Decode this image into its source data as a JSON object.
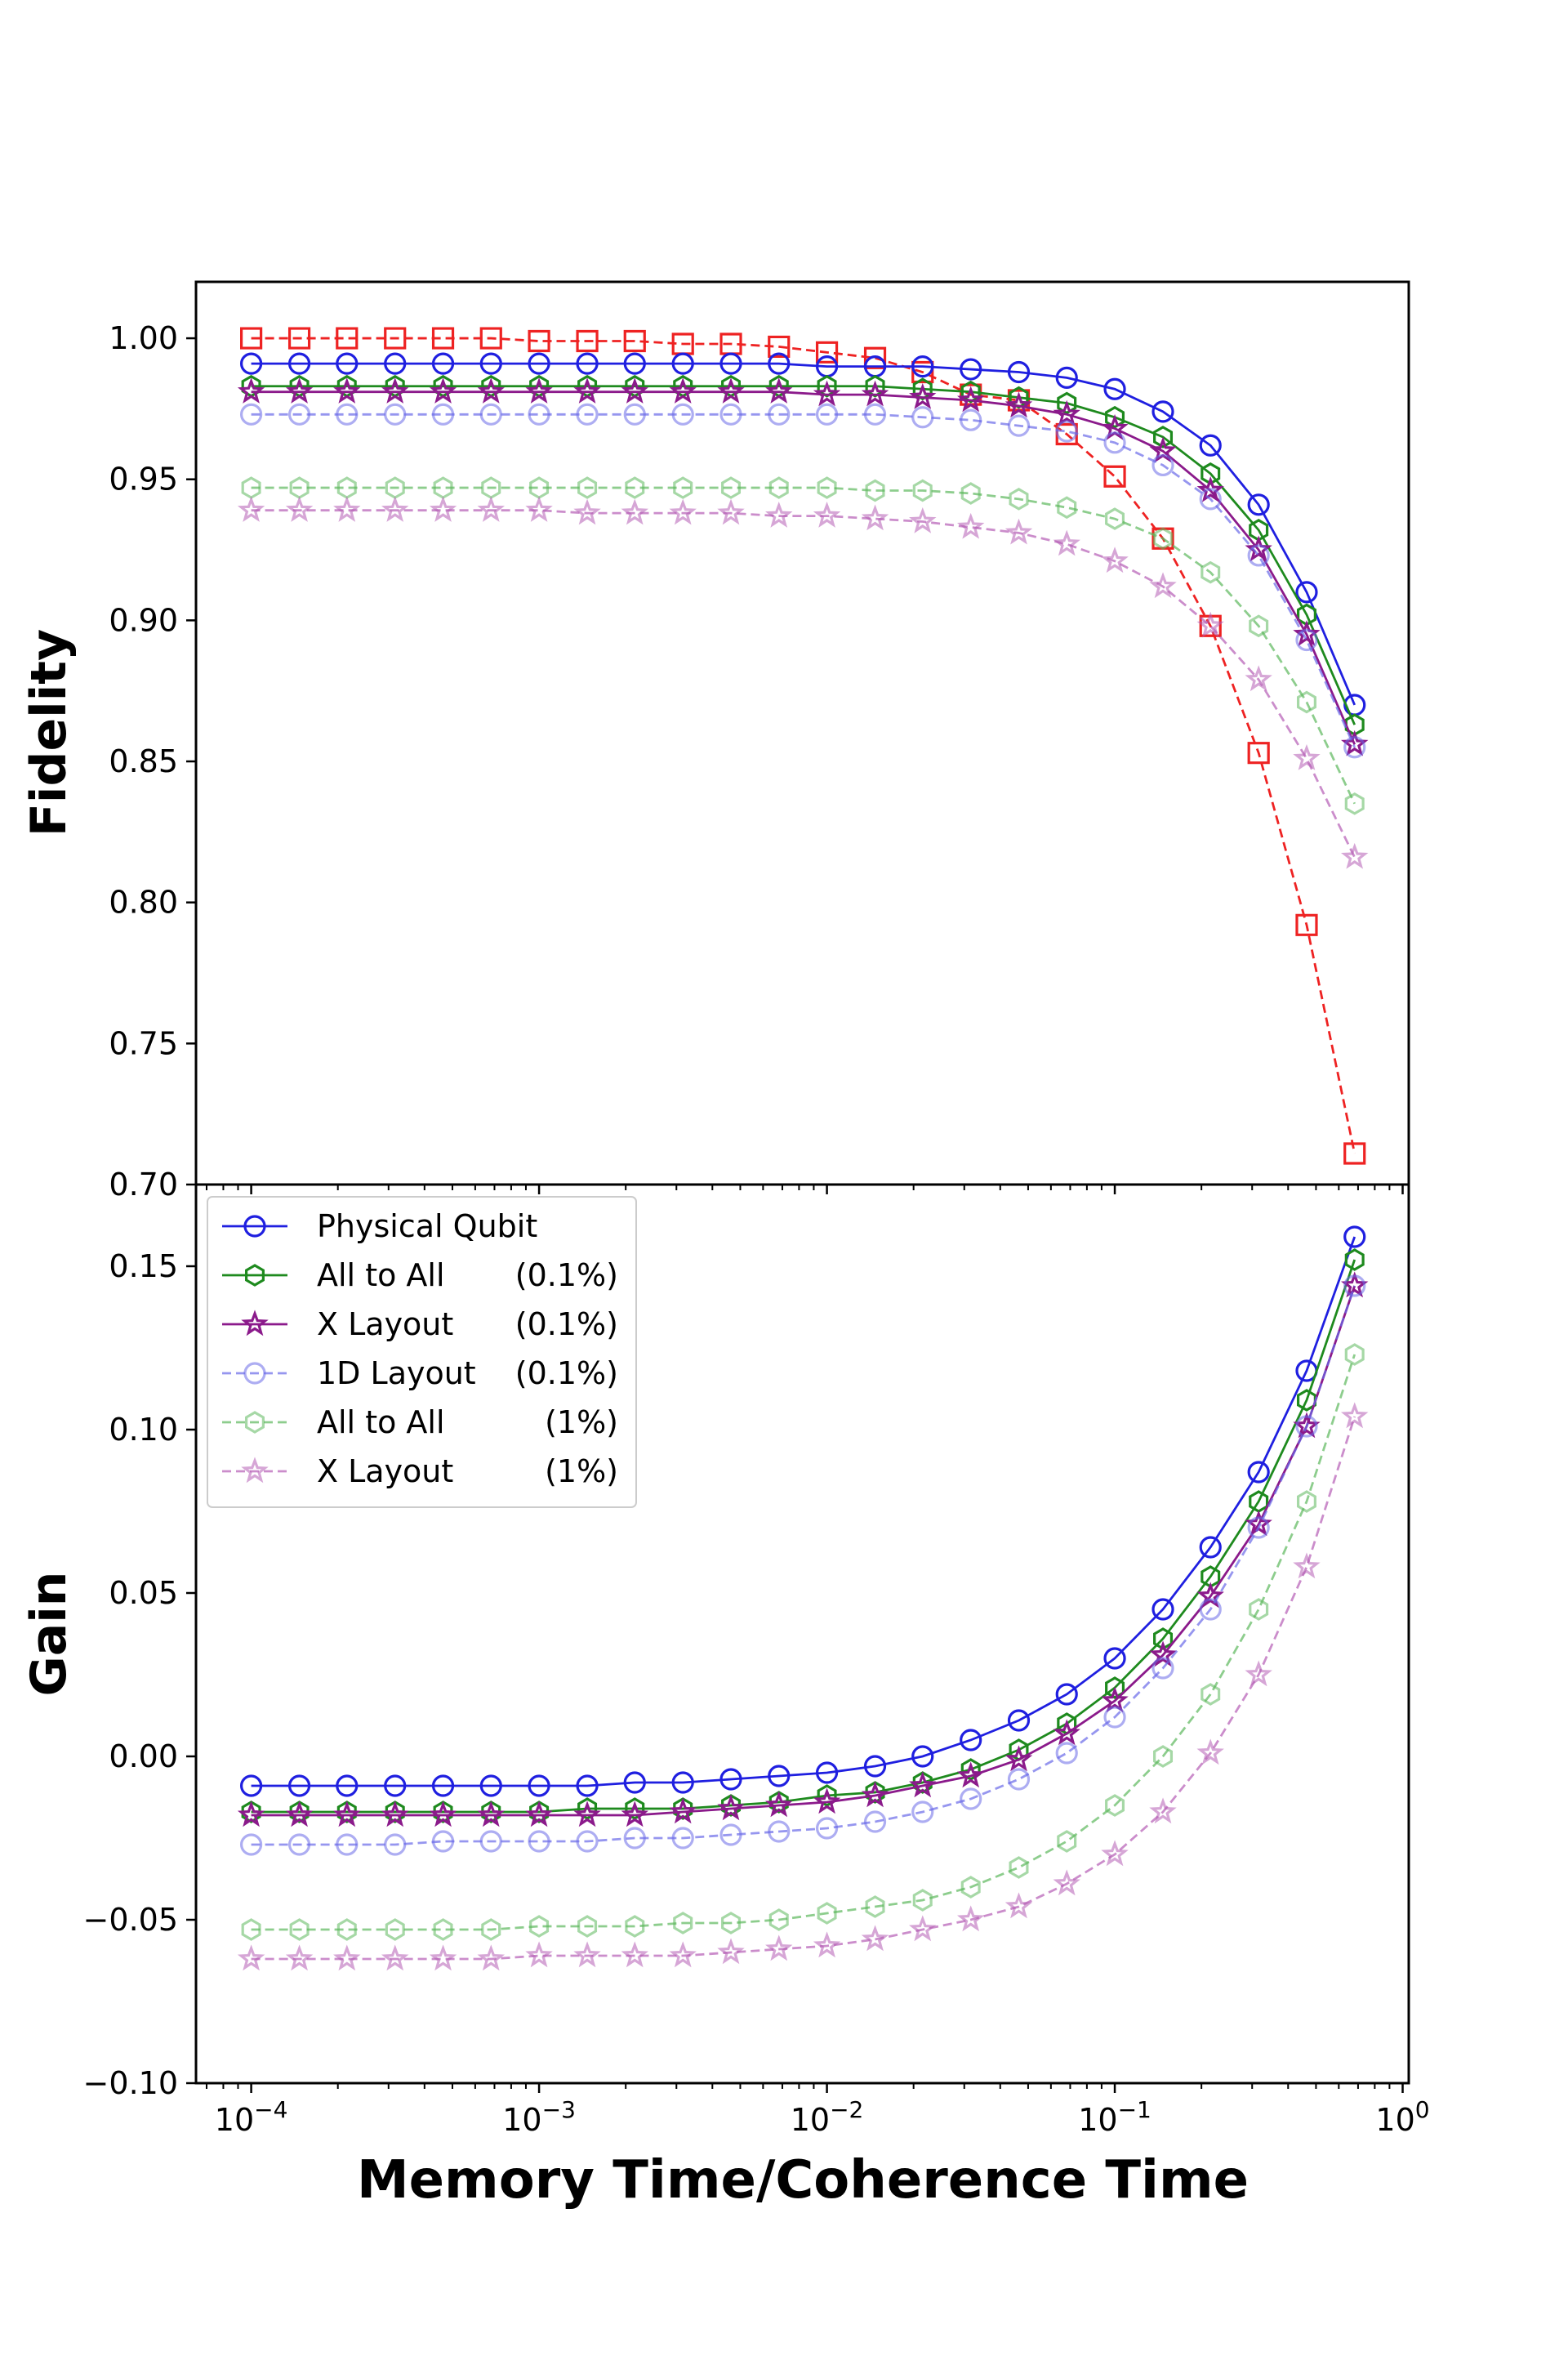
{
  "chart_data": {
    "type": "line",
    "x": [
      0.0001,
      0.000147,
      0.000215,
      0.000316,
      0.000464,
      0.000681,
      0.001,
      0.00147,
      0.00215,
      0.00316,
      0.00464,
      0.00681,
      0.01,
      0.0147,
      0.0215,
      0.0316,
      0.0464,
      0.0681,
      0.1,
      0.147,
      0.215,
      0.316,
      0.464,
      0.681
    ],
    "xlabel": "Memory Time/Coherence Time",
    "xscale": "log",
    "xlim": [
      6.43e-05,
      1.05
    ],
    "x_ticks": [
      {
        "value": 0.0001,
        "label_base": "10",
        "label_exp": "−4"
      },
      {
        "value": 0.001,
        "label_base": "10",
        "label_exp": "−3"
      },
      {
        "value": 0.01,
        "label_base": "10",
        "label_exp": "−2"
      },
      {
        "value": 0.1,
        "label_base": "10",
        "label_exp": "−1"
      },
      {
        "value": 1,
        "label_base": "10",
        "label_exp": "0"
      }
    ],
    "panels": [
      {
        "id": "fidelity",
        "ylabel": "Fidelity",
        "ylim": [
          0.7,
          1.02
        ],
        "y_ticks": [
          {
            "value": 0.7,
            "label": "0.70"
          },
          {
            "value": 0.75,
            "label": "0.75"
          },
          {
            "value": 0.8,
            "label": "0.80"
          },
          {
            "value": 0.85,
            "label": "0.85"
          },
          {
            "value": 0.9,
            "label": "0.90"
          },
          {
            "value": 0.95,
            "label": "0.95"
          },
          {
            "value": 1.0,
            "label": "1.00"
          }
        ],
        "series": [
          {
            "name": "Unlabeled reference (red squares)",
            "color": "#ee2222",
            "marker": "square",
            "dashed": true,
            "faded": false,
            "values": [
              1.0,
              1.0,
              1.0,
              1.0,
              1.0,
              1.0,
              0.999,
              0.999,
              0.999,
              0.998,
              0.998,
              0.997,
              0.995,
              0.993,
              0.988,
              0.98,
              0.978,
              0.966,
              0.951,
              0.929,
              0.898,
              0.853,
              0.792,
              0.711
            ]
          },
          {
            "name": "Physical Qubit",
            "color": "#1f1fe0",
            "marker": "circle",
            "dashed": false,
            "faded": false,
            "values": [
              0.991,
              0.991,
              0.991,
              0.991,
              0.991,
              0.991,
              0.991,
              0.991,
              0.991,
              0.991,
              0.991,
              0.991,
              0.99,
              0.99,
              0.99,
              0.989,
              0.988,
              0.986,
              0.982,
              0.974,
              0.962,
              0.941,
              0.91,
              0.87
            ]
          },
          {
            "name": "All to All (0.1%)",
            "color": "#1e8a1e",
            "marker": "hexagon",
            "dashed": false,
            "faded": false,
            "values": [
              0.983,
              0.983,
              0.983,
              0.983,
              0.983,
              0.983,
              0.983,
              0.983,
              0.983,
              0.983,
              0.983,
              0.983,
              0.983,
              0.983,
              0.982,
              0.981,
              0.979,
              0.977,
              0.972,
              0.965,
              0.952,
              0.932,
              0.902,
              0.863
            ]
          },
          {
            "name": "X Layout (0.1%)",
            "color": "#8b1a8b",
            "marker": "star",
            "dashed": false,
            "faded": false,
            "values": [
              0.981,
              0.981,
              0.981,
              0.981,
              0.981,
              0.981,
              0.981,
              0.981,
              0.981,
              0.981,
              0.981,
              0.981,
              0.98,
              0.98,
              0.979,
              0.978,
              0.976,
              0.973,
              0.968,
              0.96,
              0.946,
              0.925,
              0.895,
              0.856
            ]
          },
          {
            "name": "1D Layout (0.1%)",
            "color": "#6a6ae8",
            "marker": "circle",
            "dashed": true,
            "faded": true,
            "values": [
              0.973,
              0.973,
              0.973,
              0.973,
              0.973,
              0.973,
              0.973,
              0.973,
              0.973,
              0.973,
              0.973,
              0.973,
              0.973,
              0.973,
              0.972,
              0.971,
              0.969,
              0.967,
              0.963,
              0.955,
              0.943,
              0.923,
              0.893,
              0.855
            ]
          },
          {
            "name": "All to All (1%)",
            "color": "#5cb85c",
            "marker": "hexagon",
            "dashed": true,
            "faded": true,
            "values": [
              0.947,
              0.947,
              0.947,
              0.947,
              0.947,
              0.947,
              0.947,
              0.947,
              0.947,
              0.947,
              0.947,
              0.947,
              0.947,
              0.946,
              0.946,
              0.945,
              0.943,
              0.94,
              0.936,
              0.929,
              0.917,
              0.898,
              0.871,
              0.835
            ]
          },
          {
            "name": "X Layout (1%)",
            "color": "#b55cb5",
            "marker": "star",
            "dashed": true,
            "faded": true,
            "values": [
              0.939,
              0.939,
              0.939,
              0.939,
              0.939,
              0.939,
              0.939,
              0.938,
              0.938,
              0.938,
              0.938,
              0.937,
              0.937,
              0.936,
              0.935,
              0.933,
              0.931,
              0.927,
              0.921,
              0.912,
              0.898,
              0.879,
              0.851,
              0.816
            ]
          }
        ]
      },
      {
        "id": "gain",
        "ylabel": "Gain",
        "ylim": [
          -0.1,
          0.175
        ],
        "y_ticks": [
          {
            "value": -0.1,
            "label": "−0.10"
          },
          {
            "value": -0.05,
            "label": "−0.05"
          },
          {
            "value": 0.0,
            "label": "0.00"
          },
          {
            "value": 0.05,
            "label": "0.05"
          },
          {
            "value": 0.1,
            "label": "0.10"
          },
          {
            "value": 0.15,
            "label": "0.15"
          }
        ],
        "legend_position": "upper-left",
        "series": [
          {
            "name": "Physical Qubit",
            "legend_label": "Physical Qubit",
            "legend_pct": "",
            "color": "#1f1fe0",
            "marker": "circle",
            "dashed": false,
            "faded": false,
            "values": [
              -0.009,
              -0.009,
              -0.009,
              -0.009,
              -0.009,
              -0.009,
              -0.009,
              -0.009,
              -0.008,
              -0.008,
              -0.007,
              -0.006,
              -0.005,
              -0.003,
              0.0,
              0.005,
              0.011,
              0.019,
              0.03,
              0.045,
              0.064,
              0.087,
              0.118,
              0.159
            ]
          },
          {
            "name": "All to All (0.1%)",
            "legend_label": "All to All",
            "legend_pct": "(0.1%)",
            "color": "#1e8a1e",
            "marker": "hexagon",
            "dashed": false,
            "faded": false,
            "values": [
              -0.017,
              -0.017,
              -0.017,
              -0.017,
              -0.017,
              -0.017,
              -0.017,
              -0.016,
              -0.016,
              -0.016,
              -0.015,
              -0.014,
              -0.012,
              -0.011,
              -0.008,
              -0.004,
              0.002,
              0.01,
              0.021,
              0.036,
              0.055,
              0.078,
              0.109,
              0.152
            ]
          },
          {
            "name": "X Layout (0.1%)",
            "legend_label": "X Layout",
            "legend_pct": "(0.1%)",
            "color": "#8b1a8b",
            "marker": "star",
            "dashed": false,
            "faded": false,
            "values": [
              -0.018,
              -0.018,
              -0.018,
              -0.018,
              -0.018,
              -0.018,
              -0.018,
              -0.018,
              -0.018,
              -0.017,
              -0.016,
              -0.015,
              -0.014,
              -0.012,
              -0.009,
              -0.006,
              -0.001,
              0.007,
              0.017,
              0.031,
              0.049,
              0.071,
              0.101,
              0.144
            ]
          },
          {
            "name": "1D Layout (0.1%)",
            "legend_label": "1D Layout",
            "legend_pct": "(0.1%)",
            "color": "#6a6ae8",
            "marker": "circle",
            "dashed": true,
            "faded": true,
            "values": [
              -0.027,
              -0.027,
              -0.027,
              -0.027,
              -0.026,
              -0.026,
              -0.026,
              -0.026,
              -0.025,
              -0.025,
              -0.024,
              -0.023,
              -0.022,
              -0.02,
              -0.017,
              -0.013,
              -0.007,
              0.001,
              0.012,
              0.027,
              0.045,
              0.07,
              0.101,
              0.144
            ]
          },
          {
            "name": "All to All (1%)",
            "legend_label": "All to All",
            "legend_pct": "(1%)",
            "color": "#5cb85c",
            "marker": "hexagon",
            "dashed": true,
            "faded": true,
            "values": [
              -0.053,
              -0.053,
              -0.053,
              -0.053,
              -0.053,
              -0.053,
              -0.052,
              -0.052,
              -0.052,
              -0.051,
              -0.051,
              -0.05,
              -0.048,
              -0.046,
              -0.044,
              -0.04,
              -0.034,
              -0.026,
              -0.015,
              0.0,
              0.019,
              0.045,
              0.078,
              0.123
            ]
          },
          {
            "name": "X Layout (1%)",
            "legend_label": "X Layout",
            "legend_pct": "(1%)",
            "color": "#b55cb5",
            "marker": "star",
            "dashed": true,
            "faded": true,
            "values": [
              -0.062,
              -0.062,
              -0.062,
              -0.062,
              -0.062,
              -0.062,
              -0.061,
              -0.061,
              -0.061,
              -0.061,
              -0.06,
              -0.059,
              -0.058,
              -0.056,
              -0.053,
              -0.05,
              -0.046,
              -0.039,
              -0.03,
              -0.017,
              0.001,
              0.025,
              0.058,
              0.104
            ]
          }
        ]
      }
    ]
  }
}
